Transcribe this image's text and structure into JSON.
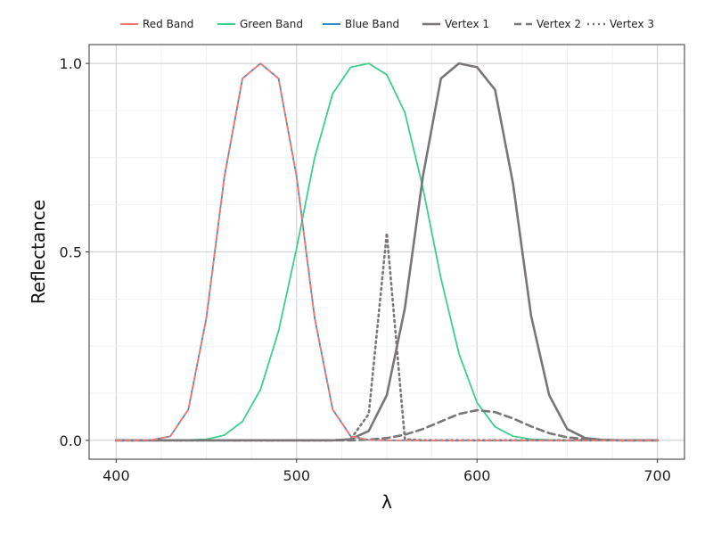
{
  "chart_data": {
    "type": "line",
    "title": "",
    "xlabel": "λ",
    "ylabel": "Reflectance",
    "xlim": [
      385,
      715
    ],
    "ylim": [
      -0.05,
      1.05
    ],
    "x_ticks": [
      400,
      500,
      600,
      700
    ],
    "x_tick_labels": [
      "400",
      "500",
      "600",
      "700"
    ],
    "y_ticks": [
      0.0,
      0.5,
      1.0
    ],
    "y_tick_labels": [
      "0.0",
      "0.5",
      "1.0"
    ],
    "grid": true,
    "legend_position": "top",
    "x": [
      400,
      410,
      420,
      430,
      440,
      450,
      460,
      470,
      480,
      490,
      500,
      510,
      520,
      530,
      540,
      550,
      560,
      570,
      580,
      590,
      600,
      610,
      620,
      630,
      640,
      650,
      660,
      670,
      680,
      690,
      700
    ],
    "series": [
      {
        "name": "Red Band",
        "color": "#f8766d",
        "style": "solid",
        "values": [
          0,
          0,
          0.001,
          0.011,
          0.082,
          0.325,
          0.7,
          0.96,
          1.0,
          0.96,
          0.7,
          0.325,
          0.082,
          0.011,
          0.001,
          0,
          0,
          0,
          0,
          0,
          0,
          0,
          0,
          0,
          0,
          0,
          0,
          0,
          0,
          0,
          0
        ]
      },
      {
        "name": "Green Band",
        "color": "#3ecf8e",
        "style": "solid",
        "values": [
          0,
          0,
          0,
          0,
          0.001,
          0.003,
          0.014,
          0.05,
          0.135,
          0.29,
          0.51,
          0.75,
          0.92,
          0.99,
          1.0,
          0.97,
          0.87,
          0.67,
          0.43,
          0.23,
          0.1,
          0.036,
          0.011,
          0.003,
          0.001,
          0,
          0,
          0,
          0,
          0,
          0
        ]
      },
      {
        "name": "Blue Band",
        "color": "#2f8fc7",
        "style": "solid",
        "values": [
          0,
          0,
          0.001,
          0.011,
          0.082,
          0.325,
          0.7,
          0.96,
          1.0,
          0.96,
          0.7,
          0.325,
          0.082,
          0.011,
          0.001,
          0,
          0,
          0,
          0,
          0,
          0,
          0,
          0,
          0,
          0,
          0,
          0,
          0,
          0,
          0,
          0
        ]
      },
      {
        "name": "Vertex 1",
        "color": "#7a7576",
        "style": "solid",
        "values": [
          0,
          0,
          0,
          0,
          0,
          0,
          0,
          0,
          0,
          0,
          0,
          0,
          0,
          0.003,
          0.025,
          0.12,
          0.35,
          0.7,
          0.96,
          1.0,
          0.99,
          0.93,
          0.68,
          0.33,
          0.12,
          0.03,
          0.006,
          0.001,
          0,
          0,
          0
        ]
      },
      {
        "name": "Vertex 2",
        "color": "#7a7576",
        "style": "dashed",
        "values": [
          0,
          0,
          0,
          0,
          0,
          0,
          0,
          0,
          0,
          0,
          0,
          0,
          0,
          0,
          0.002,
          0.006,
          0.015,
          0.03,
          0.05,
          0.07,
          0.08,
          0.075,
          0.058,
          0.037,
          0.019,
          0.008,
          0.003,
          0.001,
          0,
          0,
          0
        ]
      },
      {
        "name": "Vertex 3",
        "color": "#7a7576",
        "style": "dotted",
        "values": [
          0,
          0,
          0,
          0,
          0,
          0,
          0,
          0,
          0,
          0,
          0,
          0,
          0,
          0.003,
          0.07,
          0.55,
          0.003,
          0,
          0,
          0,
          0,
          0,
          0,
          0,
          0,
          0,
          0,
          0,
          0,
          0,
          0
        ]
      }
    ]
  }
}
